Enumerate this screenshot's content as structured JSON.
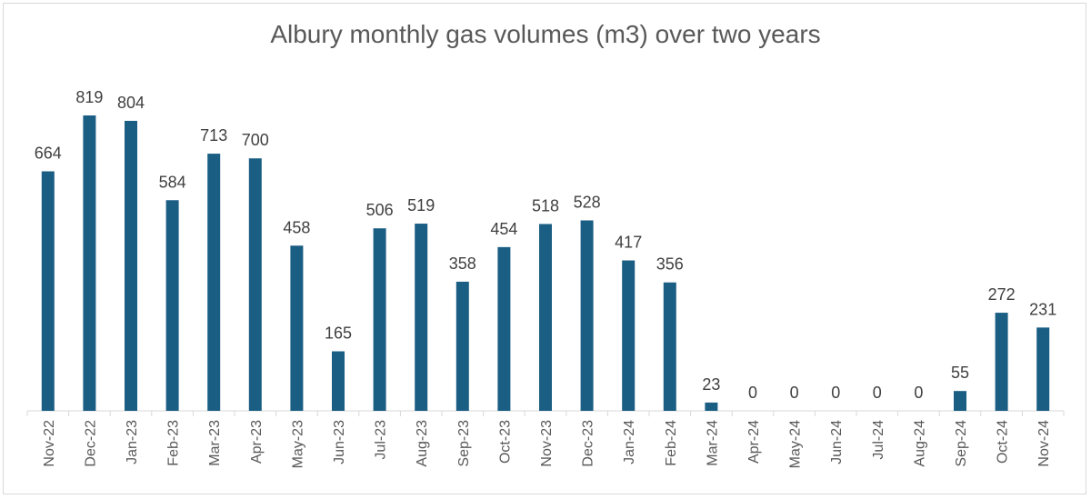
{
  "chart_data": {
    "type": "bar",
    "title": "Albury monthly gas volumes (m3) over two years",
    "xlabel": "",
    "ylabel": "",
    "ylim": [
      0,
      819
    ],
    "grid": false,
    "legend": "none",
    "bar_color": "#1b5e84",
    "categories": [
      "Nov-22",
      "Dec-22",
      "Jan-23",
      "Feb-23",
      "Mar-23",
      "Apr-23",
      "May-23",
      "Jun-23",
      "Jul-23",
      "Aug-23",
      "Sep-23",
      "Oct-23",
      "Nov-23",
      "Dec-23",
      "Jan-24",
      "Feb-24",
      "Mar-24",
      "Apr-24",
      "May-24",
      "Jun-24",
      "Jul-24",
      "Aug-24",
      "Sep-24",
      "Oct-24",
      "Nov-24"
    ],
    "values": [
      664,
      819,
      804,
      584,
      713,
      700,
      458,
      165,
      506,
      519,
      358,
      454,
      518,
      528,
      417,
      356,
      23,
      0,
      0,
      0,
      0,
      0,
      55,
      272,
      231
    ]
  }
}
